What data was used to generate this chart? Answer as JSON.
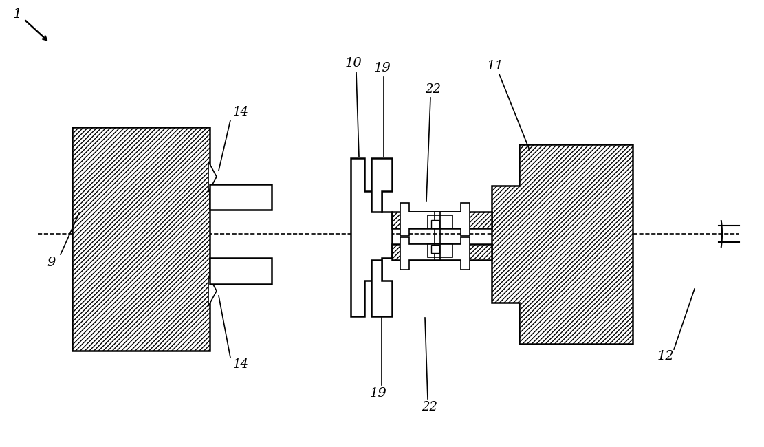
{
  "bg_color": "#ffffff",
  "fig_width": 11.11,
  "fig_height": 6.5,
  "dpi": 100
}
